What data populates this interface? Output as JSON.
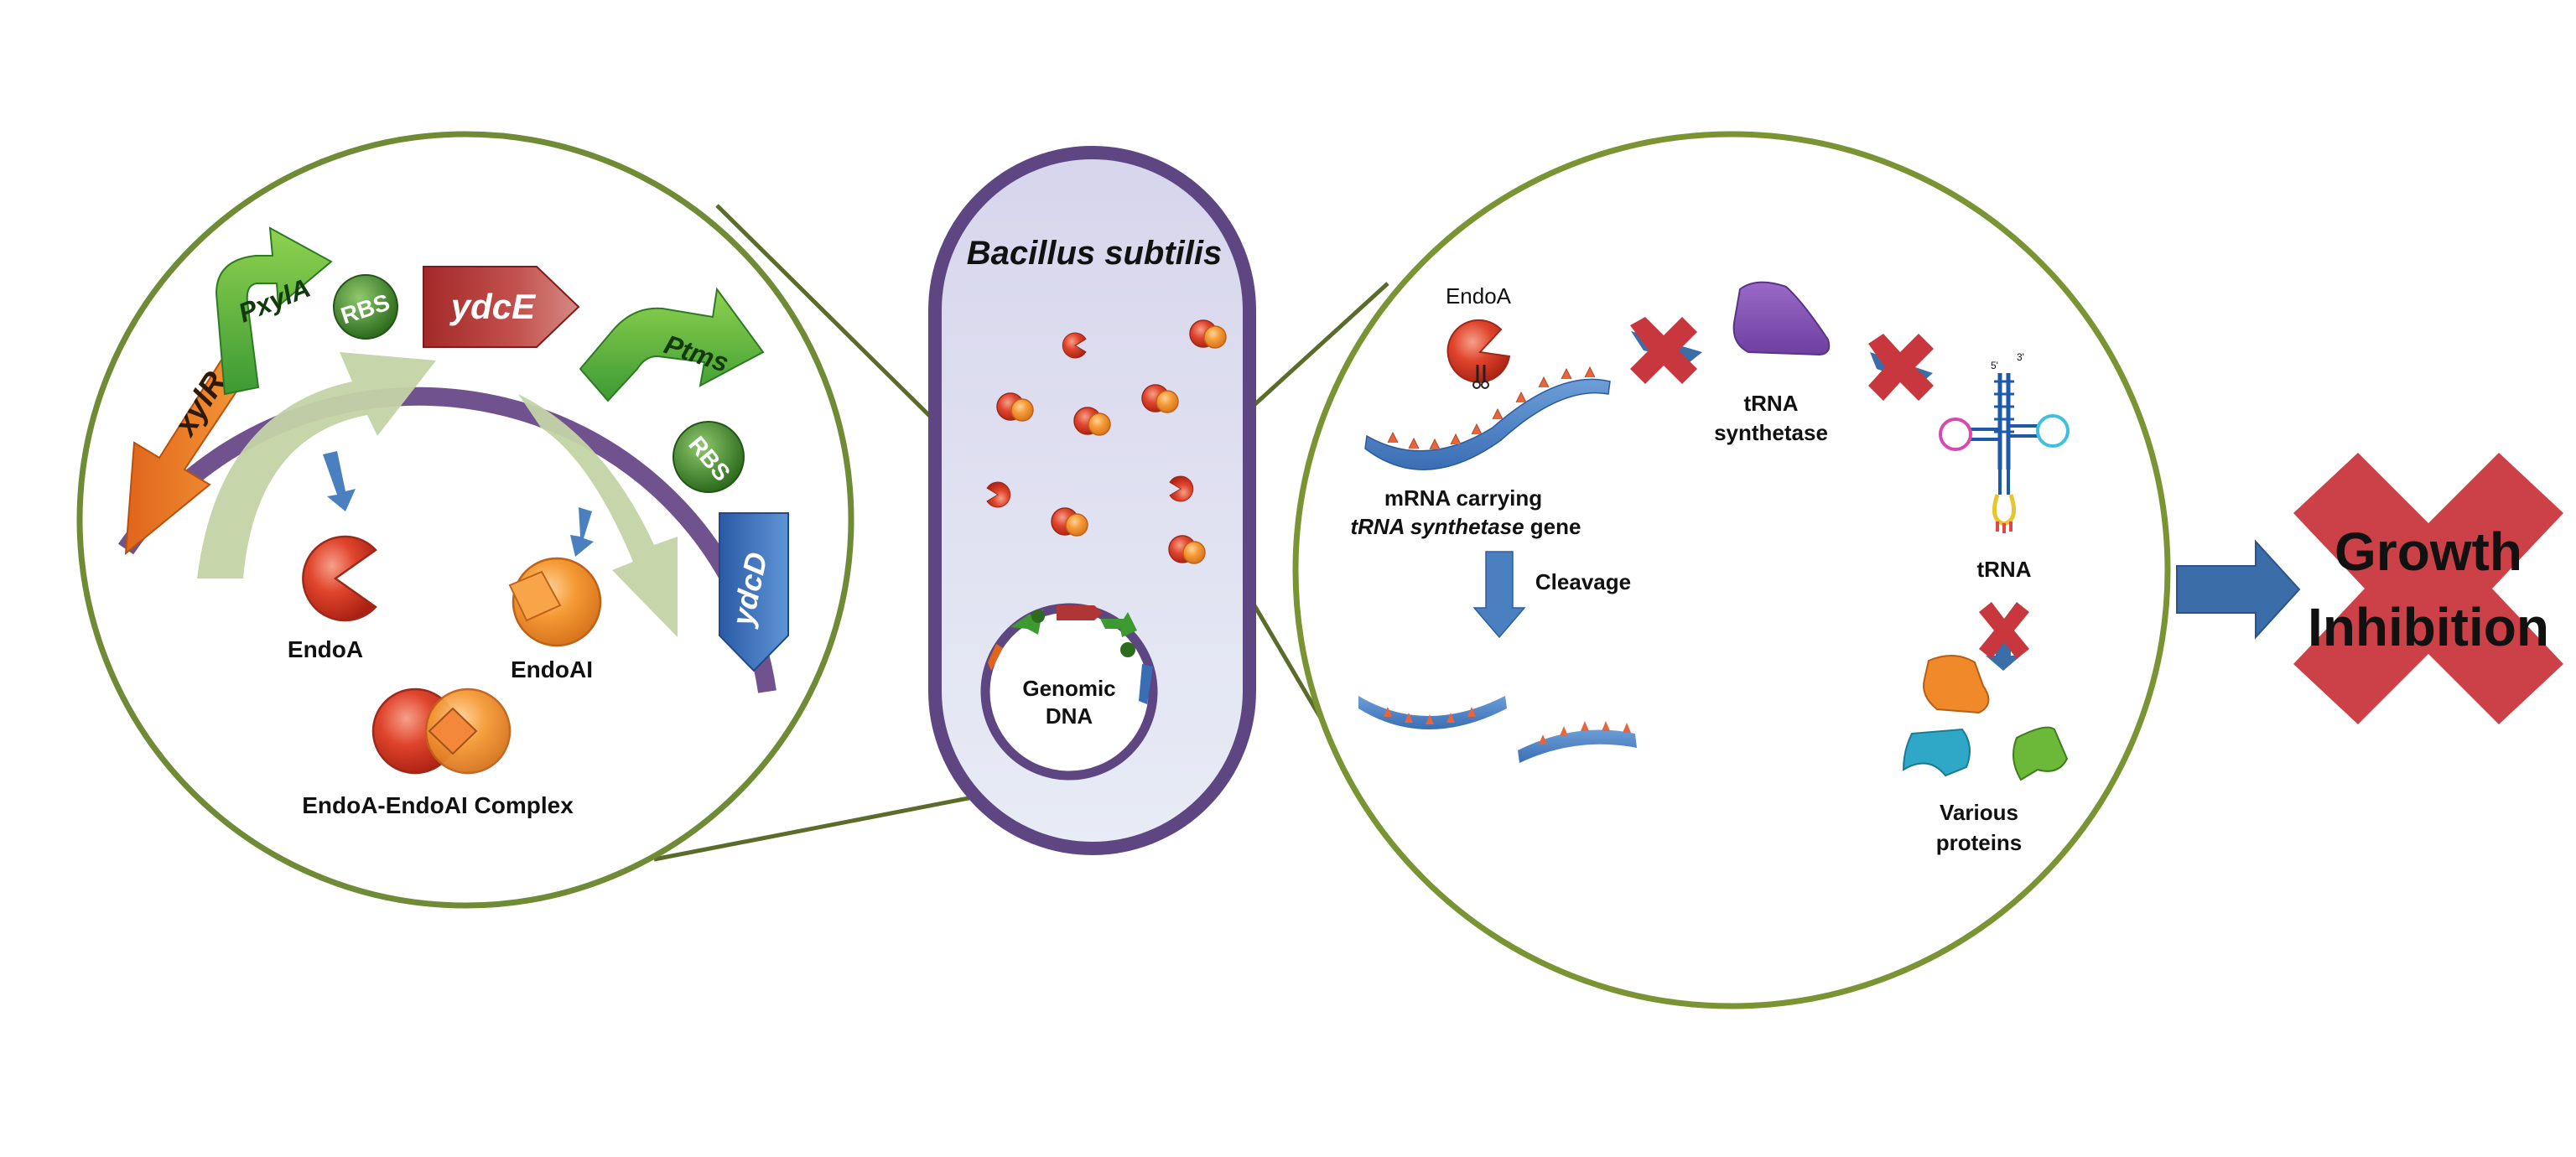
{
  "title": "Bacillus subtilis",
  "left_panel": {
    "genes": {
      "xylR": "xylR",
      "pxylA": "PxylA",
      "rbs1": "RBS",
      "ydcE": "ydcE",
      "ptms": "Ptms",
      "rbs2": "RBS",
      "ydcD": "ydcD"
    },
    "labels": {
      "endoA": "EndoA",
      "endoAI": "EndoAI",
      "complex": "EndoA-EndoAI Complex"
    }
  },
  "cell": {
    "genomic_dna_line1": "Genomic",
    "genomic_dna_line2": "DNA"
  },
  "right_panel": {
    "endoA": "EndoA",
    "mrna_line1": "mRNA carrying",
    "mrna_line2_italic": "tRNA synthetase",
    "mrna_line2_rest": " gene",
    "cleavage": "Cleavage",
    "trna_synthetase_line1": "tRNA",
    "trna_synthetase_line2": "synthetase",
    "trna": "tRNA",
    "trna_five_prime": "5'",
    "trna_three_prime": "3'",
    "proteins_line1": "Various",
    "proteins_line2": "proteins"
  },
  "outcome": {
    "line1": "Growth",
    "line2": "Inhibition"
  },
  "colors": {
    "circle_border": "#7a9434",
    "cell_border": "#5e4683",
    "cell_fill": "#dcdcef",
    "endoA_red": "#d93a25",
    "endoAI_orange": "#f08a2a",
    "arrow_blue": "#3b6ea8",
    "cross_red": "#c8373d"
  }
}
